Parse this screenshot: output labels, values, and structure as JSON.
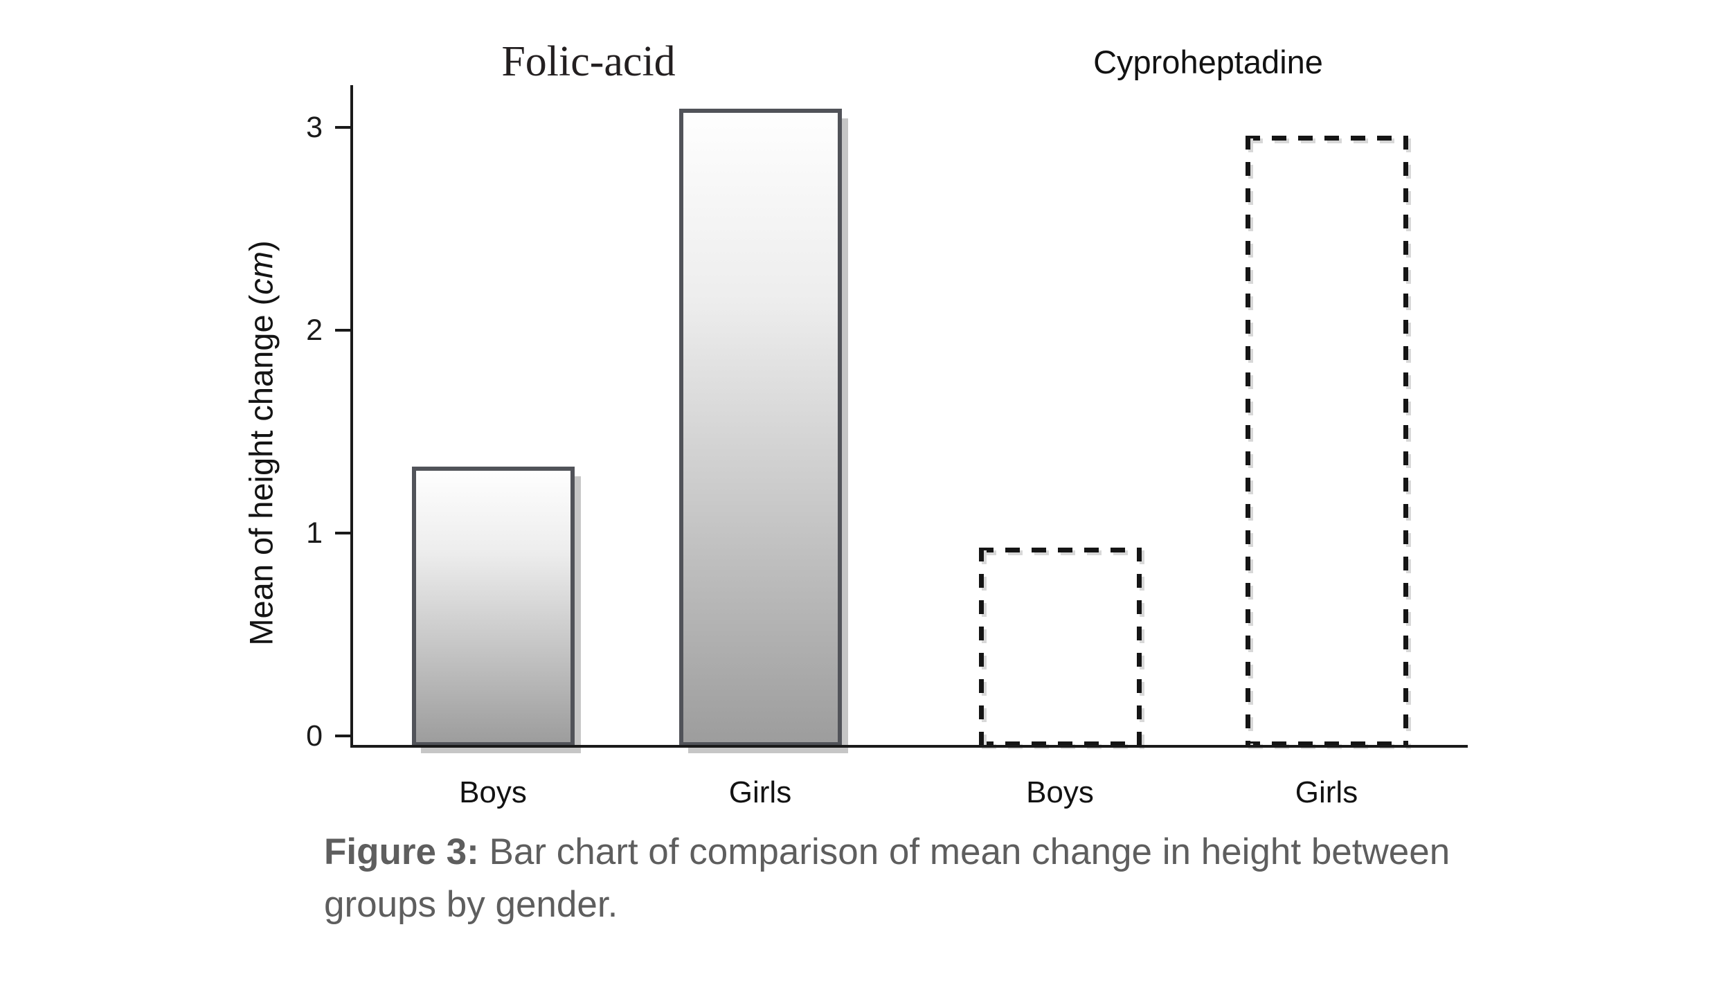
{
  "figure": {
    "caption": {
      "label_bold": "Figure 3:",
      "line1_rest": " Bar chart of comparison of mean change in height between",
      "line2": "groups by gender.",
      "color": "#5e5e5e"
    }
  },
  "chart_data": {
    "type": "bar",
    "title_left": "Folic-acid",
    "title_right": "Cyproheptadine",
    "ylabel_parts": {
      "prefix": "Mean of height change (",
      "unit_italic": "cm",
      "suffix": ")"
    },
    "xlabel": "",
    "y_ticks": [
      0,
      1,
      2,
      3
    ],
    "ylim": [
      0,
      3.2
    ],
    "grid": false,
    "legend": "none",
    "categories": [
      "Boys",
      "Girls",
      "Boys",
      "Girls"
    ],
    "groups": [
      {
        "name": "Folic-acid",
        "style": "filled-gradient",
        "bars": [
          {
            "category": "Boys",
            "value": 1.35
          },
          {
            "category": "Girls",
            "value": 3.08
          }
        ]
      },
      {
        "name": "Cyproheptadine",
        "style": "dashed-outline",
        "bars": [
          {
            "category": "Boys",
            "value": 0.96
          },
          {
            "category": "Girls",
            "value": 2.95
          }
        ]
      }
    ],
    "colors": {
      "axis": "#1a1a1a",
      "filled_bar_border": "#515359",
      "filled_bar_gradient_top": "#fefefe",
      "filled_bar_gradient_bottom": "#9d9d9d",
      "filled_bar_shadow": "#c6c6c6",
      "dashed_bar_stroke": "#151515",
      "background": "#ffffff"
    }
  }
}
